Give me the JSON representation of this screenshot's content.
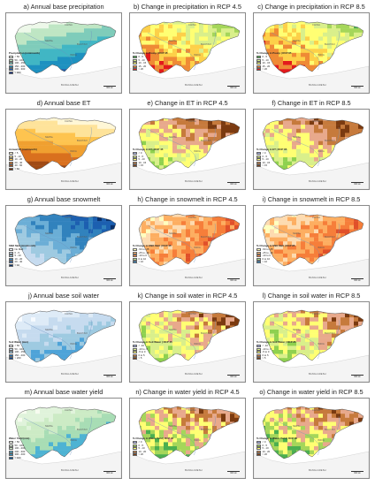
{
  "labels": {
    "china": "CHINA",
    "nepal": "NEPAL",
    "bhutan": "BHUTAN",
    "india": "INDIA",
    "bangladesh": "BANGLADESH",
    "scale": "300 km"
  },
  "panels": [
    {
      "title": "a) Annual base precipitation",
      "palette": [
        "#edf8e9",
        "#bfe6c4",
        "#7fccba",
        "#41b6c4",
        "#1d91c0",
        "#225ea8",
        "#0c2c84"
      ],
      "legend": {
        "title": "Precipitation (mm/month)",
        "items": [
          "< 50",
          "50 - 100",
          "100 - 150",
          "150 - 200",
          "200 - 300",
          "> 300"
        ]
      }
    },
    {
      "title": "b) Change in precipitation in RCP 4.5",
      "palette": [
        "#4caf50",
        "#a5d65a",
        "#d9ef8b",
        "#ffff73",
        "#fdd049",
        "#ef8a35",
        "#e31a1c"
      ],
      "legend": {
        "title": "% Change in Precip | RCP 45",
        "items": [
          "0 - 5",
          "5 - 10",
          "10 - 15",
          "15 - 20",
          "> 20"
        ]
      }
    },
    {
      "title": "c) Change in precipitation in RCP 8.5",
      "palette": [
        "#4caf50",
        "#a5d65a",
        "#d9ef8b",
        "#ffff73",
        "#fdd049",
        "#ef8a35",
        "#e31a1c"
      ],
      "legend": {
        "title": "% Change in Precip | RCP 85",
        "items": [
          "0 - 5",
          "5 - 10",
          "10 - 15",
          "15 - 20",
          "> 20"
        ]
      }
    },
    {
      "title": "d) Annual base ET",
      "palette": [
        "#fff7d6",
        "#fee39a",
        "#fec44f",
        "#f0a030",
        "#d9701e",
        "#a04a14",
        "#6b2a0a"
      ],
      "legend": {
        "title": "Annual ET (mm/month)",
        "items": [
          "< 5",
          "5 - 10",
          "10 - 20",
          "20 - 40",
          "40 - 60",
          "> 60"
        ]
      }
    },
    {
      "title": "e) Change in ET in RCP 4.5",
      "palette": [
        "#9fa8da",
        "#8fd14f",
        "#d9ef8b",
        "#ffff73",
        "#e8a98c",
        "#c67a3c",
        "#7b3a10"
      ],
      "legend": {
        "title": "% Change in ET | RCP 45",
        "items": [
          "< 0",
          "0 - 5",
          "5 - 10",
          "10 - 15",
          "> 15"
        ]
      }
    },
    {
      "title": "f) Change in ET in RCP 8.5",
      "palette": [
        "#9fa8da",
        "#8fd14f",
        "#d9ef8b",
        "#ffff73",
        "#e8a98c",
        "#c67a3c",
        "#7b3a10"
      ],
      "legend": {
        "title": "% Change in ET | RCP 85",
        "items": [
          "< 0",
          "0 - 5",
          "5 - 10",
          "10 - 15",
          "> 15"
        ]
      }
    },
    {
      "title": "g) Annual base snowmelt",
      "palette": [
        "#f2f8ff",
        "#c6dbef",
        "#9ecae1",
        "#6baed6",
        "#3182bd",
        "#1c5fb0",
        "#08306b"
      ],
      "legend": {
        "title": "SNO Melt (mm/month)",
        "items": [
          "No Melt",
          "0 - 5",
          "5 - 10",
          "10 - 20",
          "20 - 40",
          "> 40"
        ]
      }
    },
    {
      "title": "h) Change in snowmelt in RCP 4.5",
      "palette": [
        "#ffffc0",
        "#fddbb0",
        "#fdae61",
        "#f67e3a",
        "#e0502a",
        "#b2df8a",
        "#2c7fb8"
      ],
      "legend": {
        "title": "% Change in SNO Melt | RCP 45",
        "items": [
          "-50 to -25",
          "-25 to -10",
          "-10 to 0",
          "0 to 10",
          "> 10"
        ]
      }
    },
    {
      "title": "i) Change in snowmelt in RCP 8.5",
      "palette": [
        "#ffffc0",
        "#fddbb0",
        "#fdae61",
        "#f67e3a",
        "#e0502a",
        "#b2df8a",
        "#2c7fb8"
      ],
      "legend": {
        "title": "% Change in SNO Melt | RCP 85",
        "items": [
          "-50 to -25",
          "-25 to -10",
          "-10 to 0",
          "0 to 10",
          "> 10"
        ]
      }
    },
    {
      "title": "j) Annual base soil water",
      "palette": [
        "#f7fbff",
        "#deebf7",
        "#c6dbef",
        "#9ecae1",
        "#4ea3d8",
        "#2171b5",
        "#084594"
      ],
      "legend": {
        "title": "Soil Water (mm)",
        "items": [
          "< 50",
          "50 - 100",
          "100 - 150",
          "150 - 200",
          "> 200"
        ]
      }
    },
    {
      "title": "k) Change in soil water in RCP 4.5",
      "palette": [
        "#9fa8da",
        "#8fd14f",
        "#d9ef8b",
        "#ffff73",
        "#e8a98c",
        "#c67a3c",
        "#7b3a10"
      ],
      "legend": {
        "title": "% Change in Soil Water | RCP 45",
        "items": [
          "< -10",
          "-10 to -5",
          "-5 to 0",
          "0 to 5",
          "> 5"
        ]
      }
    },
    {
      "title": "l) Change in soil water in RCP 8.5",
      "palette": [
        "#9fa8da",
        "#8fd14f",
        "#d9ef8b",
        "#ffff73",
        "#e8a98c",
        "#c67a3c",
        "#7b3a10"
      ],
      "legend": {
        "title": "% Change in Soil Water | RCP 85",
        "items": [
          "< -10",
          "-10 to -5",
          "-5 to 0",
          "0 to 5",
          "> 5"
        ]
      }
    },
    {
      "title": "m) Annual base water yield",
      "palette": [
        "#f7fcf0",
        "#e0f3db",
        "#ccebc5",
        "#a8ddb5",
        "#4eb3d3",
        "#2b8cbe",
        "#08589e"
      ],
      "legend": {
        "title": "Water Yield (mm)",
        "items": [
          "< 50",
          "50 - 100",
          "100 - 200",
          "200 - 300",
          "300 - 400",
          "> 400"
        ]
      }
    },
    {
      "title": "n) Change in water yield in RCP 4.5",
      "palette": [
        "#9fa8da",
        "#4caf50",
        "#a5d65a",
        "#ffff73",
        "#e8a98c",
        "#c67a3c",
        "#7b3a10"
      ],
      "legend": {
        "title": "% Change in Water Yield | RCP 45",
        "items": [
          "< 0",
          "0 - 5",
          "5 - 10",
          "10 - 20",
          "> 20"
        ]
      }
    },
    {
      "title": "o) Change in water yield in RCP 8.5",
      "palette": [
        "#9fa8da",
        "#4caf50",
        "#a5d65a",
        "#ffff73",
        "#e8a98c",
        "#c67a3c",
        "#7b3a10"
      ],
      "legend": {
        "title": "% Change in Water Yield | RCP 85",
        "items": [
          "< 0",
          "0 - 5",
          "5 - 10",
          "10 - 20",
          "> 20"
        ]
      }
    }
  ]
}
